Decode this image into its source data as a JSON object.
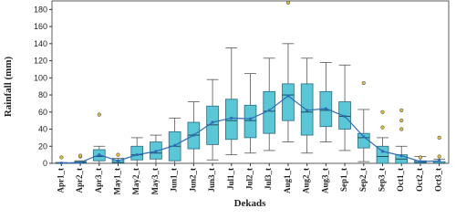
{
  "chart_data": {
    "type": "box",
    "x_label": "Dekads",
    "y_label": "Rainfall (mm)",
    "categories": [
      "Apr1_t",
      "Apr2_t",
      "Apr3_t",
      "May1_t",
      "May2_t",
      "May3_t",
      "Jun1_t",
      "Jun2_t",
      "Jun3_t",
      "Jul1_t",
      "Jul2_t",
      "Jul3_t",
      "Aug1_t",
      "Aug2_t",
      "Aug3_t",
      "Sep1_t",
      "Sep2_t",
      "Sep3_t",
      "Oct1_t",
      "Oct2_t",
      "Oct3_t"
    ],
    "box_color": "#5bc6d6",
    "edge_color": "#2b6c80",
    "mean_color": "#2f6cb5",
    "boxes": [
      {
        "min": 0,
        "q1": 0,
        "median": 0,
        "q3": 0.5,
        "max": 1,
        "mean": 0.3,
        "outliers": [
          7
        ]
      },
      {
        "min": 0,
        "q1": 0,
        "median": 1,
        "q3": 2,
        "max": 3,
        "mean": 1,
        "outliers": [
          8,
          9
        ]
      },
      {
        "min": 0,
        "q1": 3,
        "median": 8,
        "q3": 16,
        "max": 20,
        "mean": 10,
        "outliers": [
          57
        ]
      },
      {
        "min": 0,
        "q1": 0,
        "median": 1,
        "q3": 4,
        "max": 6,
        "mean": 3,
        "outliers": [
          10
        ]
      },
      {
        "min": 0,
        "q1": 4,
        "median": 10,
        "q3": 20,
        "max": 30,
        "mean": 10,
        "outliers": []
      },
      {
        "min": 0,
        "q1": 5,
        "median": 12,
        "q3": 25,
        "max": 33,
        "mean": 14,
        "outliers": []
      },
      {
        "min": 0,
        "q1": 3,
        "median": 20,
        "q3": 37,
        "max": 53,
        "mean": 21,
        "outliers": []
      },
      {
        "min": 0,
        "q1": 17,
        "median": 33,
        "q3": 48,
        "max": 72,
        "mean": 33,
        "outliers": []
      },
      {
        "min": 4,
        "q1": 22,
        "median": 45,
        "q3": 67,
        "max": 98,
        "mean": 48,
        "outliers": []
      },
      {
        "min": 10,
        "q1": 28,
        "median": 50,
        "q3": 75,
        "max": 135,
        "mean": 53,
        "outliers": []
      },
      {
        "min": 12,
        "q1": 30,
        "median": 50,
        "q3": 68,
        "max": 105,
        "mean": 52,
        "outliers": []
      },
      {
        "min": 15,
        "q1": 35,
        "median": 61,
        "q3": 84,
        "max": 123,
        "mean": 62,
        "outliers": []
      },
      {
        "min": 25,
        "q1": 50,
        "median": 80,
        "q3": 93,
        "max": 140,
        "mean": 79,
        "outliers": [
          188
        ]
      },
      {
        "min": 12,
        "q1": 33,
        "median": 60,
        "q3": 93,
        "max": 123,
        "mean": 62,
        "outliers": []
      },
      {
        "min": 25,
        "q1": 43,
        "median": 62,
        "q3": 84,
        "max": 118,
        "mean": 64,
        "outliers": []
      },
      {
        "min": 15,
        "q1": 40,
        "median": 55,
        "q3": 72,
        "max": 115,
        "mean": 55,
        "outliers": []
      },
      {
        "min": 2,
        "q1": 18,
        "median": 30,
        "q3": 35,
        "max": 63,
        "mean": 31,
        "outliers": [
          94
        ]
      },
      {
        "min": 0,
        "q1": 0,
        "median": 8,
        "q3": 20,
        "max": 30,
        "mean": 14,
        "outliers": [
          42,
          60
        ]
      },
      {
        "min": 0,
        "q1": 0,
        "median": 5,
        "q3": 10,
        "max": 20,
        "mean": 9,
        "outliers": [
          40,
          50,
          62
        ]
      },
      {
        "min": 0,
        "q1": 0,
        "median": 1,
        "q3": 3,
        "max": 8,
        "mean": 2,
        "outliers": [
          7
        ]
      },
      {
        "min": 0,
        "q1": 0,
        "median": 0,
        "q3": 2,
        "max": 5,
        "mean": 3,
        "outliers": [
          8,
          30
        ]
      }
    ],
    "ylim": [
      0,
      190
    ],
    "yticks": [
      0,
      20,
      40,
      60,
      80,
      100,
      120,
      140,
      160,
      180
    ]
  }
}
